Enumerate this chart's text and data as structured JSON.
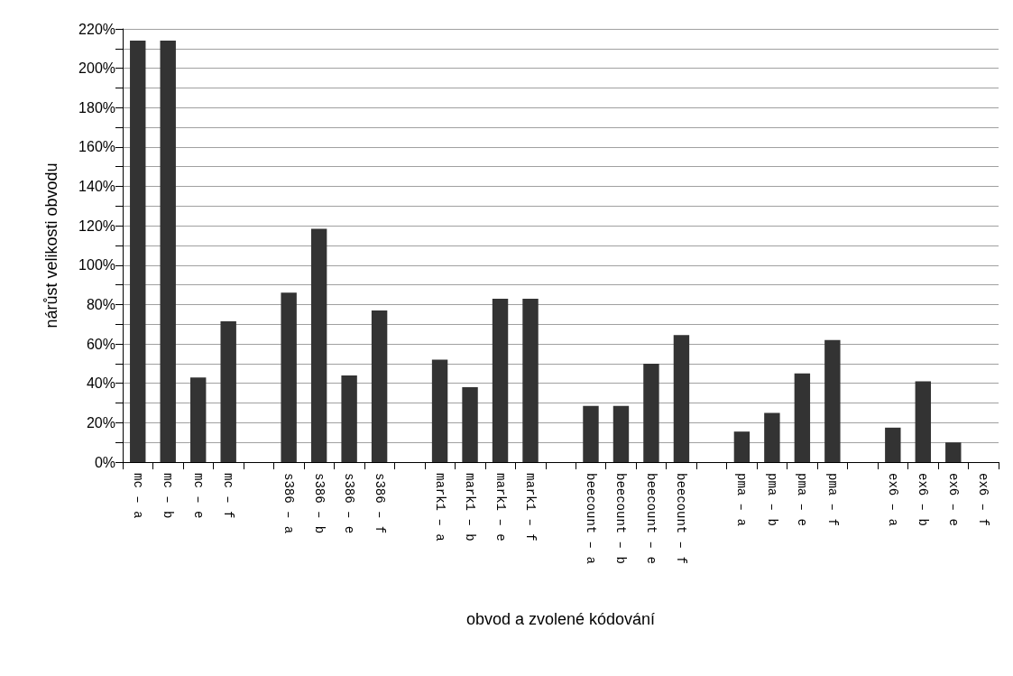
{
  "chart_data": {
    "type": "bar",
    "xlabel": "obvod a zvolené kódování",
    "ylabel": "nárůst velikosti obvodu",
    "categories": [
      "mc – a",
      "mc – b",
      "mc – e",
      "mc – f",
      null,
      "s386 – a",
      "s386 – b",
      "s386 – e",
      "s386 – f",
      null,
      "mark1 – a",
      "mark1 – b",
      "mark1 – e",
      "mark1 – f",
      null,
      "beecount – a",
      "beecount – b",
      "beecount – e",
      "beecount – f",
      null,
      "pma – a",
      "pma – b",
      "pma – e",
      "pma – f",
      null,
      "ex6 – a",
      "ex6 – b",
      "ex6 – e",
      "ex6 – f"
    ],
    "values": [
      214,
      214,
      43,
      71.5,
      null,
      86,
      118.5,
      44,
      77,
      null,
      52,
      38,
      83,
      83,
      null,
      28.5,
      28.5,
      50,
      64.5,
      null,
      15.5,
      25,
      45,
      62,
      null,
      17.5,
      41,
      10,
      0
    ],
    "color": "#333333",
    "ylim": [
      0,
      220
    ],
    "yticks": [
      {
        "value": 0,
        "label": "0%"
      },
      {
        "value": 10,
        "label": null
      },
      {
        "value": 20,
        "label": "20%"
      },
      {
        "value": 30,
        "label": null
      },
      {
        "value": 40,
        "label": "40%"
      },
      {
        "value": 50,
        "label": null
      },
      {
        "value": 60,
        "label": "60%"
      },
      {
        "value": 70,
        "label": null
      },
      {
        "value": 80,
        "label": "80%"
      },
      {
        "value": 90,
        "label": null
      },
      {
        "value": 100,
        "label": "100%"
      },
      {
        "value": 110,
        "label": null
      },
      {
        "value": 120,
        "label": "120%"
      },
      {
        "value": 130,
        "label": null
      },
      {
        "value": 140,
        "label": "140%"
      },
      {
        "value": 150,
        "label": null
      },
      {
        "value": 160,
        "label": "160%"
      },
      {
        "value": 170,
        "label": null
      },
      {
        "value": 180,
        "label": "180%"
      },
      {
        "value": 190,
        "label": null
      },
      {
        "value": 200,
        "label": "200%"
      },
      {
        "value": 210,
        "label": null
      },
      {
        "value": 220,
        "label": "220%"
      }
    ],
    "grid": "y"
  }
}
